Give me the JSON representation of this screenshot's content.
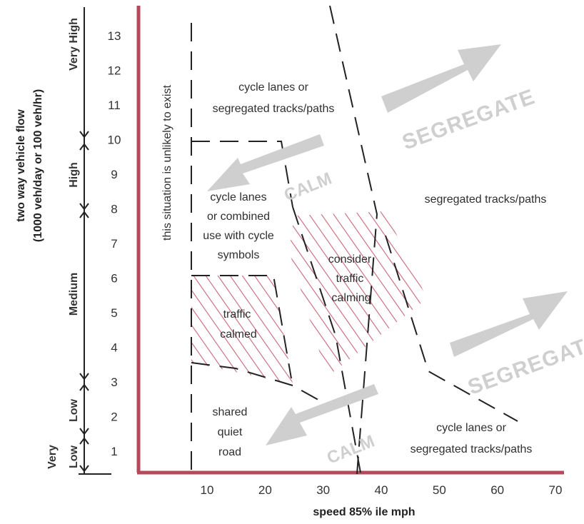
{
  "chart_data": {
    "type": "diagram",
    "xlabel": "speed 85% ile mph",
    "ylabel_line1": "two way vehicle flow",
    "ylabel_line2": "(1000 veh/day or 100 veh/hr)",
    "x_ticks": [
      "10",
      "20",
      "30",
      "40",
      "50",
      "60",
      "70"
    ],
    "y_ticks": [
      "1",
      "2",
      "3",
      "4",
      "5",
      "6",
      "7",
      "8",
      "9",
      "10",
      "11",
      "12",
      "13"
    ],
    "flow_bands": [
      {
        "label_line1": "Very",
        "label_line2": "Low",
        "from": 0.6,
        "to": 1.6
      },
      {
        "label": "Low",
        "from": 1.6,
        "to": 2.9
      },
      {
        "label": "Medium",
        "from": 2.9,
        "to": 8.0
      },
      {
        "label": "High",
        "from": 8.0,
        "to": 9.9
      },
      {
        "label": "Very High",
        "from": 9.9,
        "to": 13.8
      }
    ],
    "regions": {
      "unlikely": "this situation is unlikely to exist",
      "cycle_lanes_top_1": "cycle lanes or",
      "cycle_lanes_top_2": "segregated tracks/paths",
      "combined_1": "cycle lanes",
      "combined_2": "or combined",
      "combined_3": "use with cycle",
      "combined_4": "symbols",
      "segregated": "segregated tracks/paths",
      "consider_1": "consider",
      "consider_2": "traffic",
      "consider_3": "calming",
      "traffic_calmed_1": "traffic",
      "traffic_calmed_2": "calmed",
      "shared_1": "shared",
      "shared_2": "quiet",
      "shared_3": "road",
      "cycle_lanes_bottom_1": "cycle lanes or",
      "cycle_lanes_bottom_2": "segregated tracks/paths"
    },
    "arrows": {
      "segregate_upper": "SEGREGATE",
      "calm_upper": "CALM",
      "segregate_lower": "SEGREGATE",
      "calm_lower": "CALM"
    },
    "colors": {
      "axis": "#b5485a",
      "hatch": "#c8667a",
      "arrow": "#cfcfcf",
      "text": "#333333"
    }
  }
}
